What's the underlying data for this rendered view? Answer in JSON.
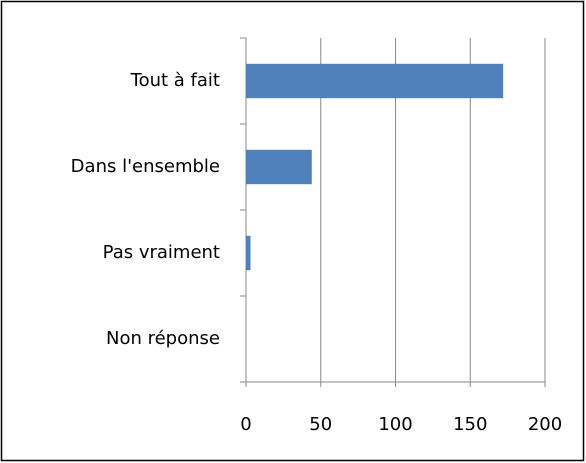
{
  "chart_data": {
    "type": "bar",
    "orientation": "horizontal",
    "categories": [
      "Tout à fait",
      "Dans l'ensemble",
      "Pas vraiment",
      "Non réponse"
    ],
    "values": [
      172,
      44,
      3,
      0
    ],
    "color": "#4f81bd",
    "xlim": [
      0,
      200
    ],
    "xticks": [
      0,
      50,
      100,
      150,
      200
    ],
    "grid": true
  }
}
